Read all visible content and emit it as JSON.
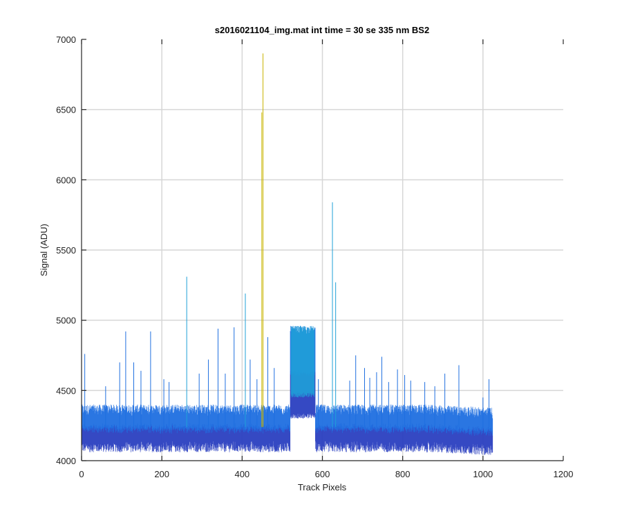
{
  "chart_data": {
    "type": "line",
    "title": "s2016021104_img.mat int time = 30 se  335 nm BS2",
    "xlabel": "Track Pixels",
    "ylabel": "Signal (ADU)",
    "xlim": [
      0,
      1200
    ],
    "ylim": [
      4000,
      7000
    ],
    "xticks": [
      "0",
      "200",
      "400",
      "600",
      "800",
      "1000",
      "1200"
    ],
    "yticks": [
      "4000",
      "4500",
      "5000",
      "5500",
      "6000",
      "6500",
      "7000"
    ],
    "grid": true,
    "legend": "none",
    "series_count_description": "many overlapping rows, colored blue to cyan",
    "colors": {
      "low": "#2a3fc0",
      "mid": "#1f6fe0",
      "high": "#1fa0d8",
      "accent": "#c8b400"
    },
    "pixel_range": [
      1,
      1024
    ],
    "baseline": {
      "min": 4100,
      "max": 4360,
      "center": 4240
    },
    "plateau": {
      "x_start": 520,
      "x_end": 582,
      "min": 4300,
      "max": 4960
    },
    "spikes": [
      {
        "x": 8,
        "y": 4760
      },
      {
        "x": 60,
        "y": 4530
      },
      {
        "x": 95,
        "y": 4700
      },
      {
        "x": 110,
        "y": 4920
      },
      {
        "x": 130,
        "y": 4700
      },
      {
        "x": 148,
        "y": 4640
      },
      {
        "x": 172,
        "y": 4920
      },
      {
        "x": 205,
        "y": 4580
      },
      {
        "x": 218,
        "y": 4560
      },
      {
        "x": 262,
        "y": 5310
      },
      {
        "x": 293,
        "y": 4620
      },
      {
        "x": 316,
        "y": 4720
      },
      {
        "x": 340,
        "y": 4940
      },
      {
        "x": 358,
        "y": 4620
      },
      {
        "x": 380,
        "y": 4950
      },
      {
        "x": 408,
        "y": 5190
      },
      {
        "x": 420,
        "y": 4720
      },
      {
        "x": 437,
        "y": 4580
      },
      {
        "x": 449,
        "y": 6480
      },
      {
        "x": 452,
        "y": 6900
      },
      {
        "x": 464,
        "y": 4880
      },
      {
        "x": 480,
        "y": 4660
      },
      {
        "x": 590,
        "y": 4580
      },
      {
        "x": 625,
        "y": 5840
      },
      {
        "x": 633,
        "y": 5270
      },
      {
        "x": 668,
        "y": 4570
      },
      {
        "x": 683,
        "y": 4750
      },
      {
        "x": 705,
        "y": 4660
      },
      {
        "x": 718,
        "y": 4590
      },
      {
        "x": 735,
        "y": 4630
      },
      {
        "x": 748,
        "y": 4740
      },
      {
        "x": 765,
        "y": 4560
      },
      {
        "x": 787,
        "y": 4650
      },
      {
        "x": 805,
        "y": 4610
      },
      {
        "x": 820,
        "y": 4570
      },
      {
        "x": 855,
        "y": 4560
      },
      {
        "x": 880,
        "y": 4530
      },
      {
        "x": 905,
        "y": 4620
      },
      {
        "x": 940,
        "y": 4680
      },
      {
        "x": 1000,
        "y": 4450
      },
      {
        "x": 1015,
        "y": 4580
      }
    ]
  }
}
